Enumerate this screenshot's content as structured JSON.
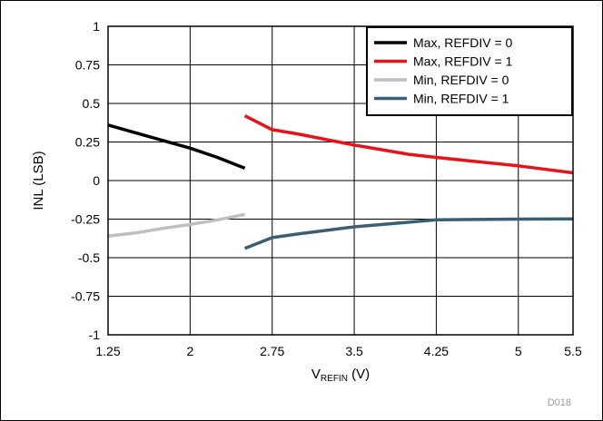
{
  "chart_data": {
    "type": "line",
    "title": "",
    "xlabel_main": "V",
    "xlabel_sub": "REFIN",
    "xlabel_unit": " (V)",
    "ylabel": "INL (LSB)",
    "xlim": [
      1.25,
      5.5
    ],
    "ylim": [
      -1,
      1
    ],
    "x_ticks": [
      1.25,
      2,
      2.75,
      3.5,
      4.25,
      5,
      5.5
    ],
    "x_tick_labels": [
      "1.25",
      "2",
      "2.75",
      "3.5",
      "4.25",
      "5",
      "5.5"
    ],
    "y_ticks": [
      -1,
      -0.75,
      -0.5,
      -0.25,
      0,
      0.25,
      0.5,
      0.75,
      1
    ],
    "y_tick_labels": [
      "-1",
      "-0.75",
      "-0.5",
      "-0.25",
      "0",
      "0.25",
      "0.5",
      "0.75",
      "1"
    ],
    "grid": true,
    "legend_position": "top-right",
    "series": [
      {
        "name": "Max, REFDIV = 0",
        "color": "#000000",
        "points": [
          [
            1.25,
            0.36
          ],
          [
            1.5,
            0.31
          ],
          [
            1.75,
            0.26
          ],
          [
            2.0,
            0.21
          ],
          [
            2.25,
            0.15
          ],
          [
            2.5,
            0.08
          ]
        ]
      },
      {
        "name": "Max, REFDIV = 1",
        "color": "#e8121a",
        "points": [
          [
            2.5,
            0.42
          ],
          [
            2.75,
            0.33
          ],
          [
            3.0,
            0.3
          ],
          [
            3.5,
            0.23
          ],
          [
            4.0,
            0.17
          ],
          [
            4.25,
            0.15
          ],
          [
            5.0,
            0.095
          ],
          [
            5.5,
            0.05
          ]
        ]
      },
      {
        "name": "Min, REFDIV = 0",
        "color": "#bfbfbf",
        "points": [
          [
            1.25,
            -0.36
          ],
          [
            1.5,
            -0.34
          ],
          [
            1.75,
            -0.31
          ],
          [
            2.0,
            -0.285
          ],
          [
            2.25,
            -0.255
          ],
          [
            2.5,
            -0.22
          ]
        ]
      },
      {
        "name": "Min, REFDIV = 1",
        "color": "#3a5f73",
        "points": [
          [
            2.5,
            -0.44
          ],
          [
            2.75,
            -0.37
          ],
          [
            3.0,
            -0.345
          ],
          [
            3.5,
            -0.3
          ],
          [
            4.0,
            -0.27
          ],
          [
            4.25,
            -0.255
          ],
          [
            5.0,
            -0.25
          ],
          [
            5.5,
            -0.248
          ]
        ]
      }
    ],
    "annotation": "D018"
  }
}
